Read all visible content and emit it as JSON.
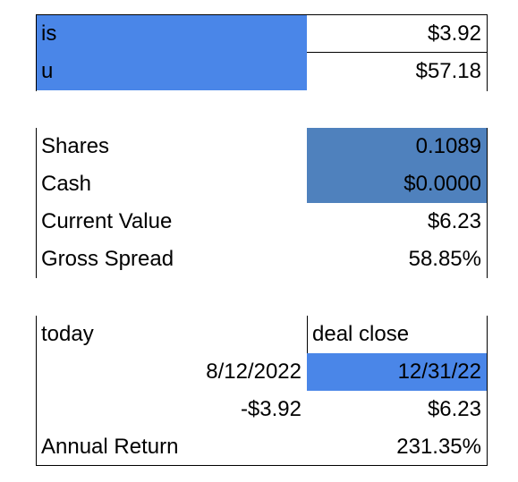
{
  "block1": {
    "rows": [
      {
        "label": "is",
        "value": "$3.92"
      },
      {
        "label": "u",
        "value": "$57.18"
      }
    ]
  },
  "block2": {
    "rows": [
      {
        "label": "Shares",
        "value": "0.1089"
      },
      {
        "label": "Cash",
        "value": "$0.0000"
      },
      {
        "label": "Current Value",
        "value": "$6.23"
      },
      {
        "label": "Gross Spread",
        "value": "58.85%"
      }
    ]
  },
  "block3": {
    "header_left": "today",
    "header_right": "deal close",
    "date_today": "8/12/2022",
    "date_close": "12/31/22",
    "cash_today": "-$3.92",
    "cash_close": "$6.23",
    "annual_return_label": "Annual Return",
    "annual_return_value": "231.35%"
  },
  "colors": {
    "highlight_blue": "#4a86e8",
    "highlight_steel": "#4f81bd"
  }
}
